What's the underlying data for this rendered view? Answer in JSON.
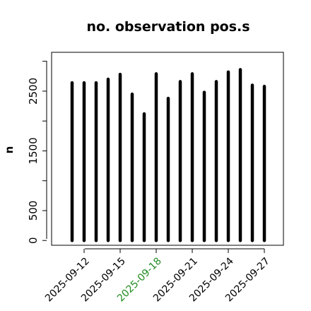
{
  "chart_data": {
    "type": "bar",
    "title": "no. observation pos.s",
    "xlabel": "",
    "ylabel": "n",
    "x_dates": [
      "2025-09-11",
      "2025-09-12",
      "2025-09-13",
      "2025-09-14",
      "2025-09-15",
      "2025-09-16",
      "2025-09-17",
      "2025-09-18",
      "2025-09-19",
      "2025-09-20",
      "2025-09-21",
      "2025-09-22",
      "2025-09-23",
      "2025-09-24",
      "2025-09-25",
      "2025-09-26",
      "2025-09-27"
    ],
    "values": [
      2640,
      2640,
      2640,
      2700,
      2780,
      2450,
      2120,
      2790,
      2380,
      2660,
      2790,
      2480,
      2660,
      2820,
      2860,
      2600,
      2580
    ],
    "xtick_labels": [
      "2025-09-12",
      "2025-09-15",
      "2025-09-18",
      "2025-09-21",
      "2025-09-24",
      "2025-09-27"
    ],
    "highlighted_tick": "2025-09-18",
    "ytick_labels": [
      "0",
      "500",
      "1500",
      "2500"
    ],
    "ytick_values": [
      0,
      500,
      1000,
      1500,
      2000,
      2500,
      3000
    ],
    "ylim": [
      -80,
      3150
    ],
    "colors": {
      "bars": "#000000",
      "highlight": "#228b22",
      "axes": "#000000"
    }
  }
}
